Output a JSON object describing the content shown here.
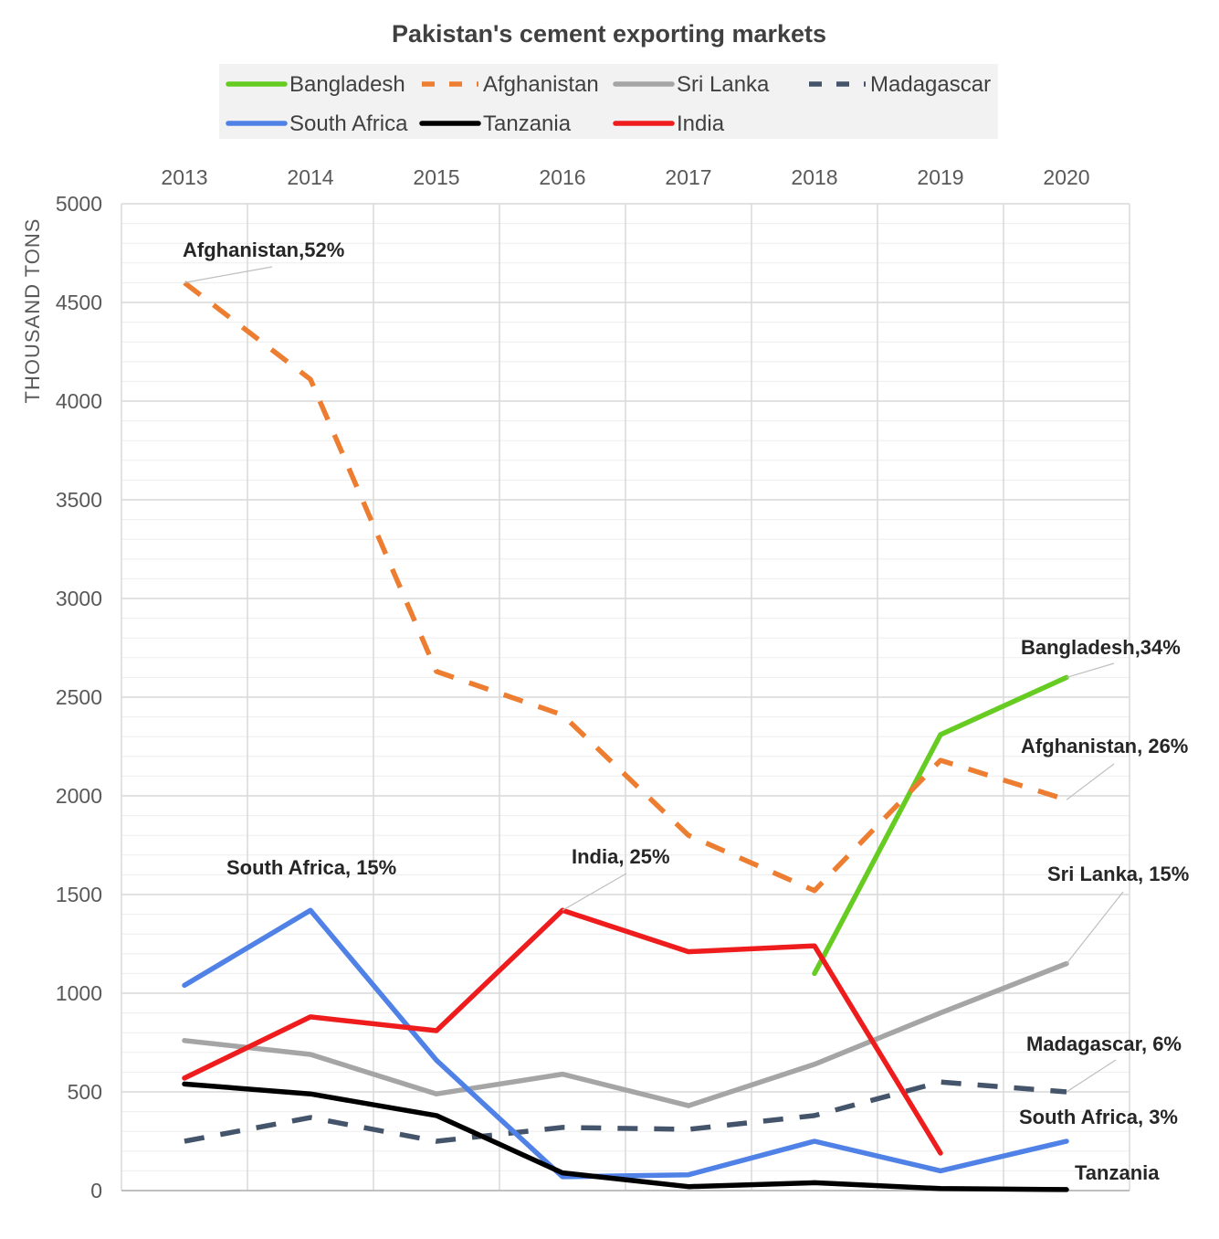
{
  "chart_data": {
    "type": "line",
    "title": "Pakistan's cement exporting markets",
    "xlabel": "",
    "ylabel": "THOUSAND TONS",
    "x": [
      "2013",
      "2014",
      "2015",
      "2016",
      "2017",
      "2018",
      "2019",
      "2020"
    ],
    "yticks": [
      "0",
      "500",
      "1000",
      "1500",
      "2000",
      "2500",
      "3000",
      "3500",
      "4000",
      "4500",
      "5000"
    ],
    "ylim": [
      0,
      5000
    ],
    "x_axis_position": "top",
    "grid": true,
    "legend_position": "top",
    "series": [
      {
        "name": "Bangladesh",
        "color": "#66CC22",
        "dash": "solid",
        "values": [
          null,
          null,
          null,
          null,
          null,
          1100,
          2310,
          2600
        ]
      },
      {
        "name": "Afghanistan",
        "color": "#ED7D31",
        "dash": "dashed",
        "values": [
          4600,
          4110,
          2630,
          2410,
          1800,
          1520,
          2180,
          1980
        ]
      },
      {
        "name": "Sri Lanka",
        "color": "#A5A5A5",
        "dash": "solid",
        "values": [
          760,
          690,
          490,
          590,
          430,
          640,
          900,
          1150
        ]
      },
      {
        "name": "Madagascar",
        "color": "#44546A",
        "dash": "dashed",
        "values": [
          250,
          370,
          250,
          320,
          310,
          380,
          550,
          500
        ]
      },
      {
        "name": "South Africa",
        "color": "#4F81E6",
        "dash": "solid",
        "values": [
          1040,
          1420,
          660,
          70,
          80,
          250,
          100,
          250
        ]
      },
      {
        "name": "Tanzania",
        "color": "#000000",
        "dash": "solid",
        "values": [
          540,
          490,
          380,
          90,
          20,
          40,
          10,
          5
        ]
      },
      {
        "name": "India",
        "color": "#EE1C1C",
        "dash": "solid",
        "values": [
          570,
          880,
          810,
          1420,
          1210,
          1240,
          190,
          null
        ]
      }
    ],
    "annotations": [
      {
        "text": "Afghanistan,52%",
        "series": "Afghanistan",
        "x": "2013"
      },
      {
        "text": "South Africa, 15%",
        "series": "South Africa",
        "x": "2014"
      },
      {
        "text": "India, 25%",
        "series": "India",
        "x": "2016"
      },
      {
        "text": "Bangladesh,34%",
        "series": "Bangladesh",
        "x": "2020"
      },
      {
        "text": "Afghanistan, 26%",
        "series": "Afghanistan",
        "x": "2020"
      },
      {
        "text": "Sri Lanka, 15%",
        "series": "Sri Lanka",
        "x": "2020"
      },
      {
        "text": "Madagascar, 6%",
        "series": "Madagascar",
        "x": "2020"
      },
      {
        "text": "South Africa, 3%",
        "series": "South Africa",
        "x": "2020"
      },
      {
        "text": "Tanzania",
        "series": "Tanzania",
        "x": "2020"
      }
    ]
  }
}
